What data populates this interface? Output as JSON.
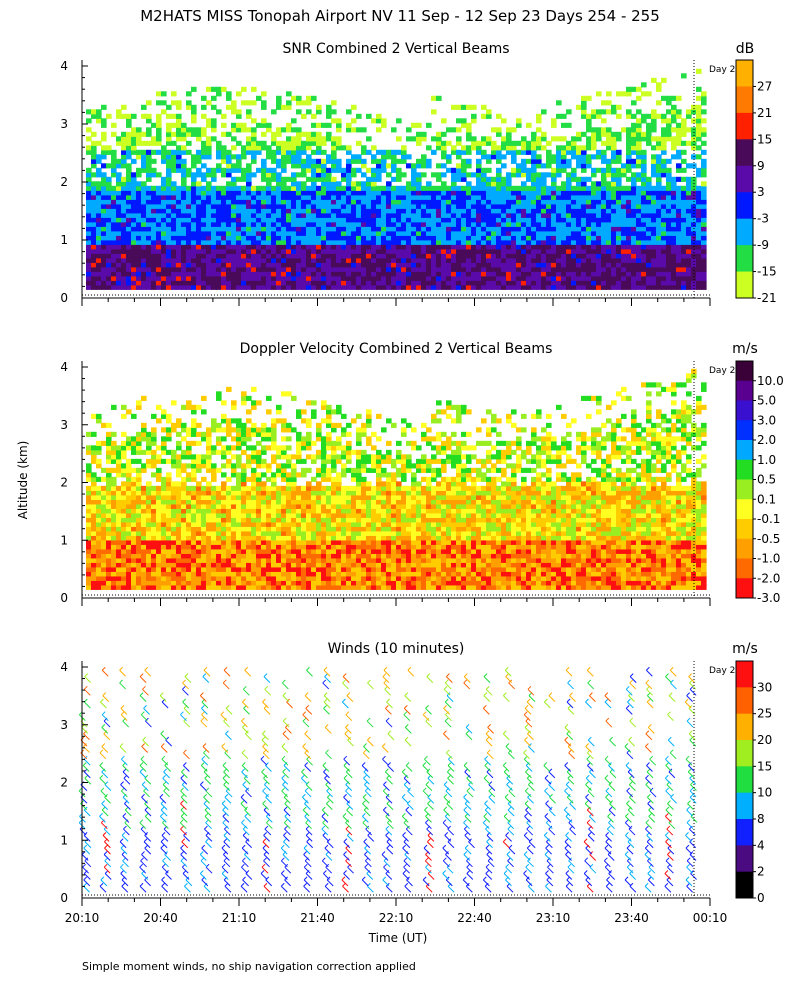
{
  "page": {
    "title": "M2HATS MISS Tonopah Airport NV  11 Sep - 12 Sep 23 Days 254 - 255",
    "footnote": "Simple moment winds, no ship navigation correction applied",
    "ylabel": "Altitude (km)",
    "xlabel": "Time (UT)",
    "day_marker_label": "Day 2"
  },
  "chart_data": [
    {
      "type": "heatmap",
      "title": "SNR Combined 2 Vertical Beams",
      "ylim": [
        0,
        4
      ],
      "yticks": [
        "0",
        "1",
        "2",
        "3",
        "4"
      ],
      "colorbar": {
        "unit": "dB",
        "labels": [
          "27",
          "21",
          "15",
          "9",
          "3",
          "-3",
          "-9",
          "-15",
          "-21"
        ],
        "colors": [
          "#ffb000",
          "#ff7a00",
          "#ff2000",
          "#4a0a5a",
          "#5a0aa8",
          "#0018ff",
          "#00aaff",
          "#22dd44",
          "#ccff22"
        ]
      }
    },
    {
      "type": "heatmap",
      "title": "Doppler Velocity Combined 2 Vertical Beams",
      "ylim": [
        0,
        4
      ],
      "yticks": [
        "0",
        "1",
        "2",
        "3",
        "4"
      ],
      "colorbar": {
        "unit": "m/s",
        "labels": [
          "10.0",
          "5.0",
          "3.0",
          "2.0",
          "1.0",
          "0.5",
          "0.1",
          "-0.1",
          "-0.5",
          "-1.0",
          "-2.0",
          "-3.0"
        ],
        "colors": [
          "#3a0038",
          "#5a0090",
          "#3a10d0",
          "#0030ff",
          "#00a8ff",
          "#22dd22",
          "#99ee22",
          "#ffff22",
          "#ffcc00",
          "#ffa000",
          "#ff6a00",
          "#ff1010"
        ]
      }
    },
    {
      "type": "scatter",
      "title": "Winds (10 minutes)",
      "ylim": [
        0,
        4
      ],
      "yticks": [
        "0",
        "1",
        "2",
        "3",
        "4"
      ],
      "x": [
        "20:10",
        "20:40",
        "21:10",
        "21:40",
        "22:10",
        "22:40",
        "23:10",
        "23:40",
        "00:10"
      ],
      "colorbar": {
        "unit": "m/s",
        "labels": [
          "30",
          "25",
          "20",
          "15",
          "10",
          "8",
          "4",
          "2",
          "0"
        ],
        "colors": [
          "#ff1010",
          "#ff6000",
          "#ffb000",
          "#a0ee20",
          "#20dd40",
          "#00b0ff",
          "#1020ff",
          "#4a0a80",
          "#000000"
        ]
      }
    }
  ]
}
